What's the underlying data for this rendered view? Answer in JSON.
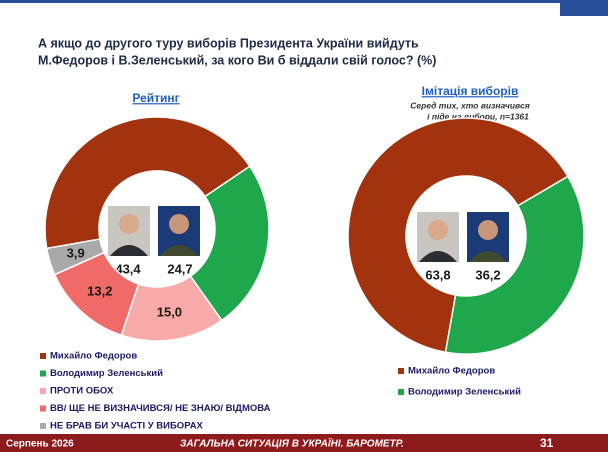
{
  "title": [
    "А якщо до другого туру виборів Президента України вийдуть",
    "М.Федоров і В.Зеленський, за кого Ви б віддали свій голос? (%)"
  ],
  "chart_data": [
    {
      "type": "pie",
      "title": "Рейтинг",
      "categories": [
        "Михайло Федоров",
        "Володимир Зеленський",
        "ПРОТИ ОБОХ",
        "ВВ/ ЩЕ НЕ ВИЗНАЧИВСЯ/ НЕ ЗНАЮ/ ВІДМОВА",
        "НЕ БРАВ БИ УЧАСТІ У ВИБОРАХ"
      ],
      "values": [
        43.4,
        24.7,
        15.0,
        13.2,
        3.9
      ],
      "value_labels": [
        "43,4",
        "24,7",
        "15,0",
        "13,2",
        "3,9"
      ],
      "colors": [
        "#a3320f",
        "#1ea84b",
        "#f8aaa8",
        "#f06a68",
        "#a9a9a9"
      ]
    },
    {
      "type": "pie",
      "title": "Імітація виборів",
      "subtitle": [
        "Серед тих, хто визначився",
        "і піде на вибори, n=1361"
      ],
      "categories": [
        "Михайло Федоров",
        "Володимир Зеленський"
      ],
      "values": [
        63.8,
        36.2
      ],
      "value_labels": [
        "63,8",
        "36,2"
      ],
      "colors": [
        "#a3320f",
        "#1ea84b"
      ]
    }
  ],
  "footer": {
    "date": "Серпень 2026",
    "text": "ЗАГАЛЬНА СИТУАЦІЯ В УКРАЇНІ. БАРОМЕТР.",
    "page": "31"
  }
}
